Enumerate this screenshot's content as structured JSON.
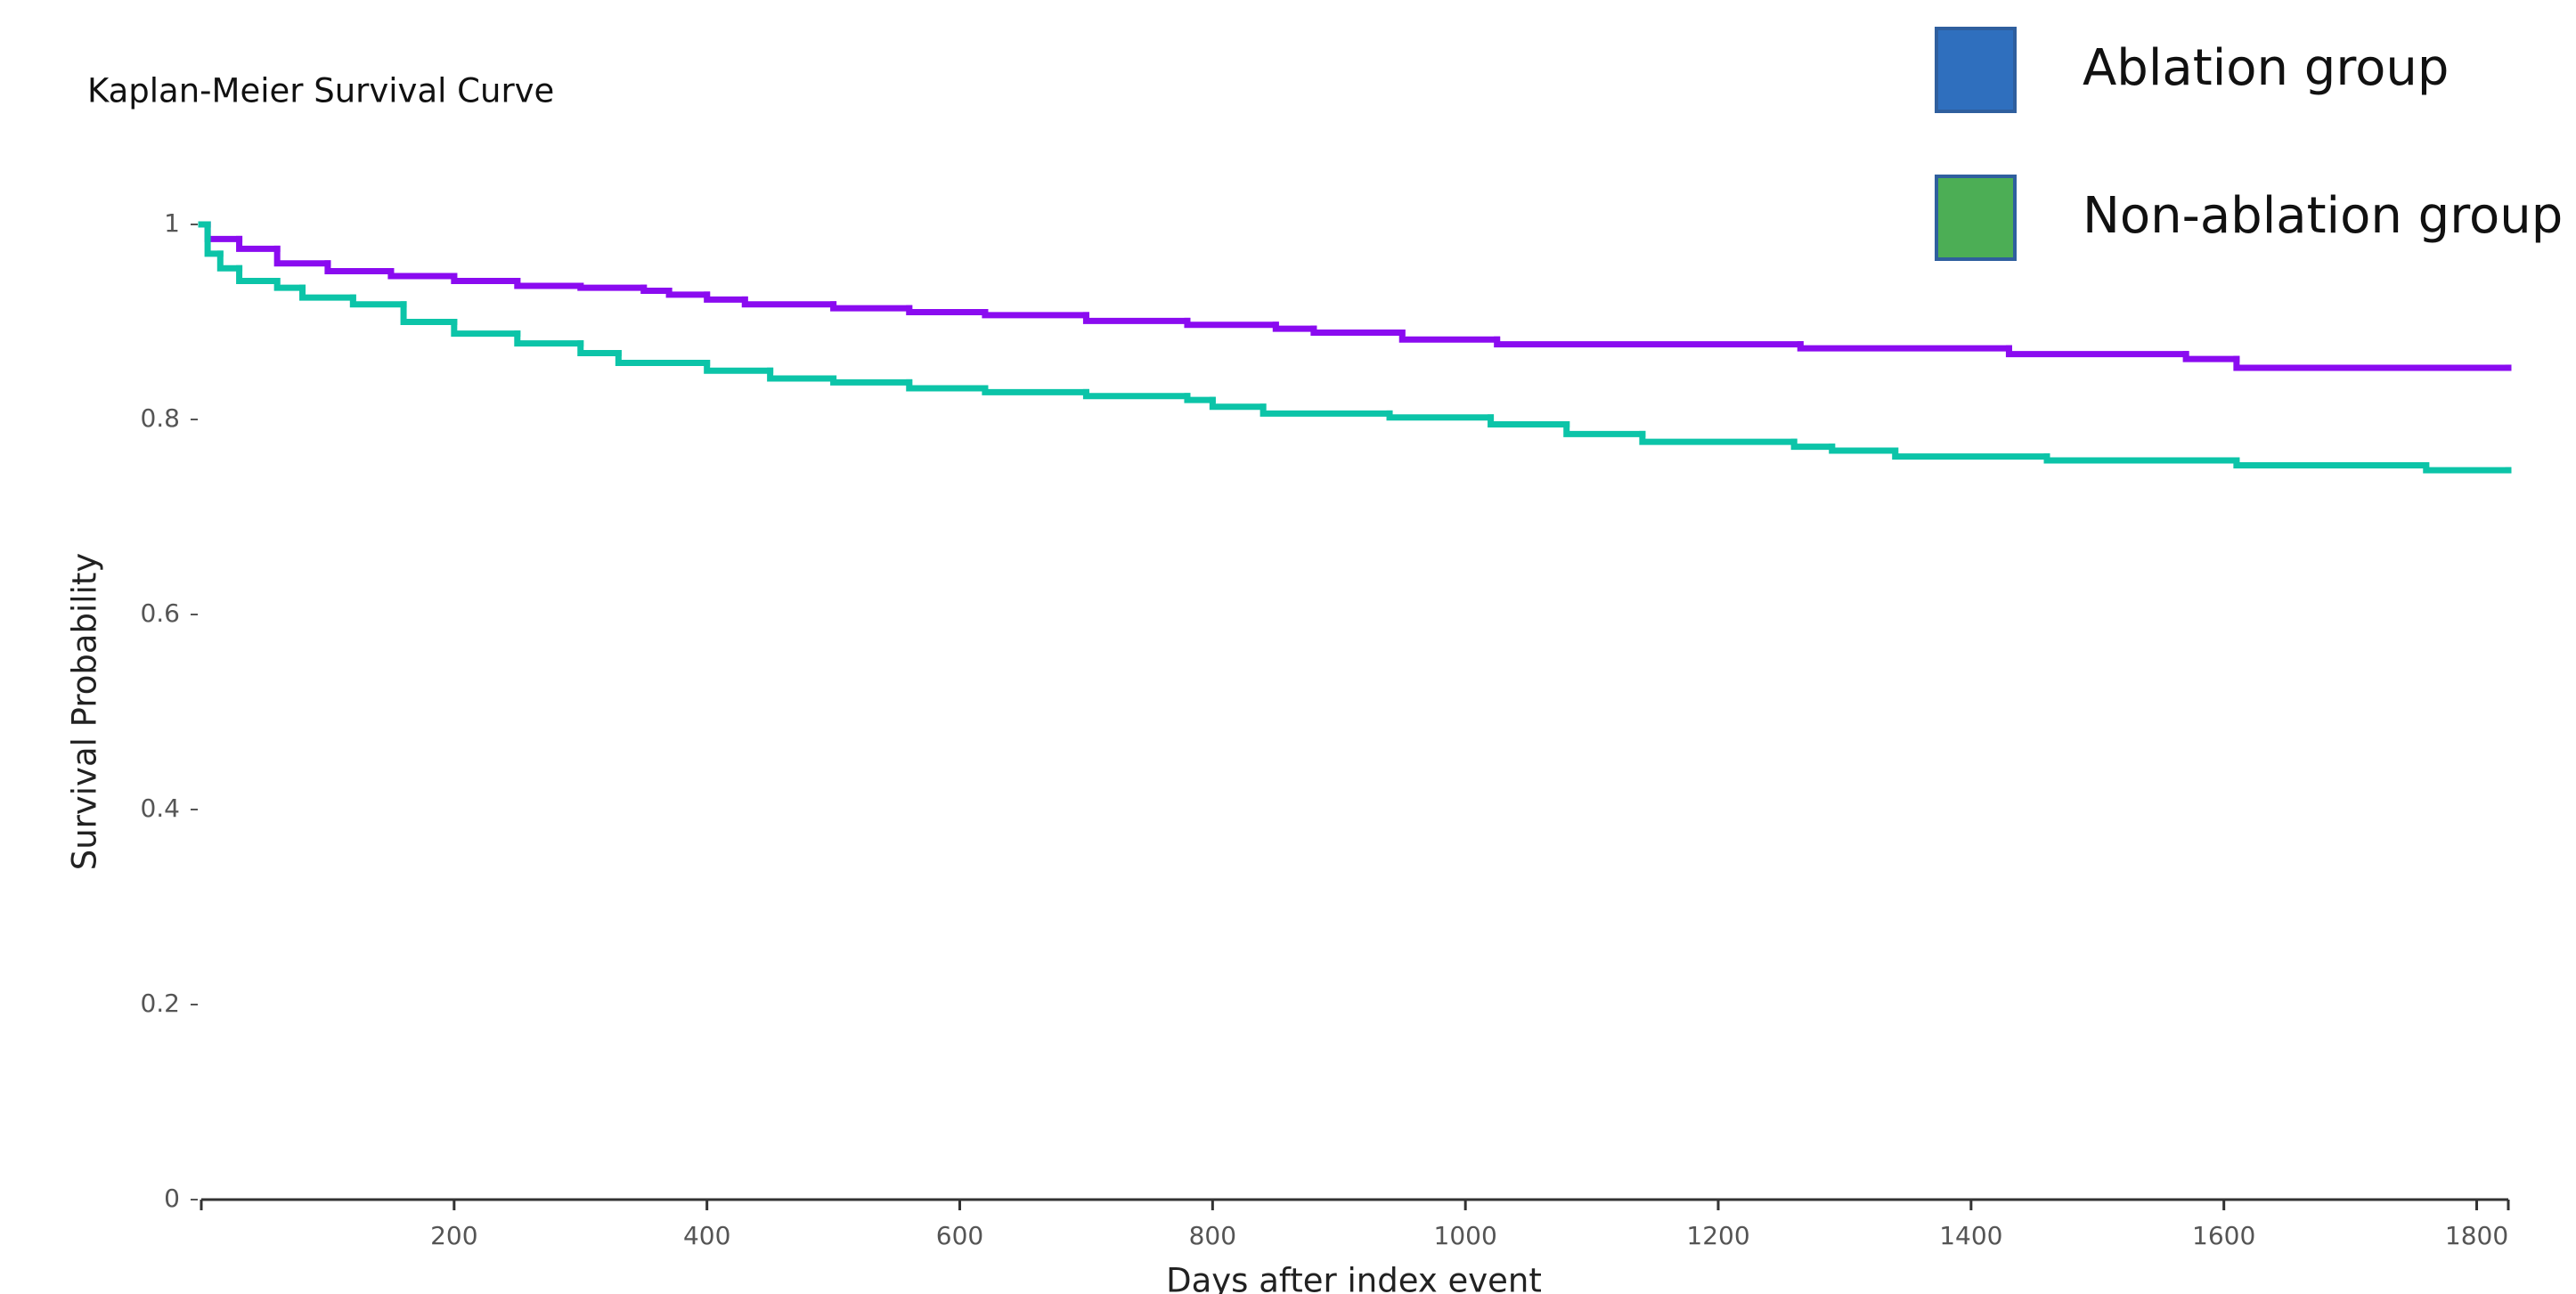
{
  "chart_data": {
    "type": "line",
    "step": true,
    "title": "Kaplan-Meier Survival Curve",
    "x_label": "Days after index event",
    "y_label": "Survival Probability",
    "xlim": [
      0,
      1825
    ],
    "xticks": [
      200,
      400,
      600,
      800,
      1000,
      1200,
      1400,
      1600,
      1800
    ],
    "ylim": [
      0,
      1
    ],
    "yticks": [
      0,
      0.2,
      0.4,
      0.6,
      0.8,
      1
    ],
    "grid": false,
    "legend": "top-right",
    "series": [
      {
        "name": "Ablation group",
        "color": "#8a0bf0",
        "legend_color": "#2f6fbe",
        "x": [
          0,
          5,
          30,
          60,
          100,
          150,
          200,
          250,
          300,
          350,
          370,
          400,
          430,
          500,
          560,
          620,
          700,
          780,
          850,
          880,
          950,
          1025,
          1265,
          1430,
          1570,
          1610,
          1825
        ],
        "values": [
          1,
          0.985,
          0.975,
          0.96,
          0.952,
          0.947,
          0.942,
          0.937,
          0.935,
          0.932,
          0.928,
          0.923,
          0.918,
          0.914,
          0.91,
          0.907,
          0.901,
          0.897,
          0.893,
          0.889,
          0.882,
          0.877,
          0.873,
          0.867,
          0.862,
          0.853,
          0.853
        ]
      },
      {
        "name": "Non-ablation group",
        "color": "#0cc4a8",
        "legend_color": "#4cae55",
        "x": [
          0,
          5,
          15,
          30,
          60,
          80,
          120,
          160,
          200,
          250,
          300,
          330,
          400,
          450,
          500,
          560,
          620,
          700,
          780,
          800,
          840,
          940,
          1020,
          1080,
          1140,
          1260,
          1290,
          1340,
          1460,
          1610,
          1760,
          1825
        ],
        "values": [
          1,
          0.97,
          0.955,
          0.942,
          0.935,
          0.925,
          0.918,
          0.9,
          0.888,
          0.878,
          0.868,
          0.858,
          0.85,
          0.842,
          0.838,
          0.832,
          0.828,
          0.824,
          0.82,
          0.813,
          0.806,
          0.802,
          0.795,
          0.785,
          0.777,
          0.772,
          0.768,
          0.762,
          0.758,
          0.753,
          0.748,
          0.748
        ]
      }
    ]
  }
}
